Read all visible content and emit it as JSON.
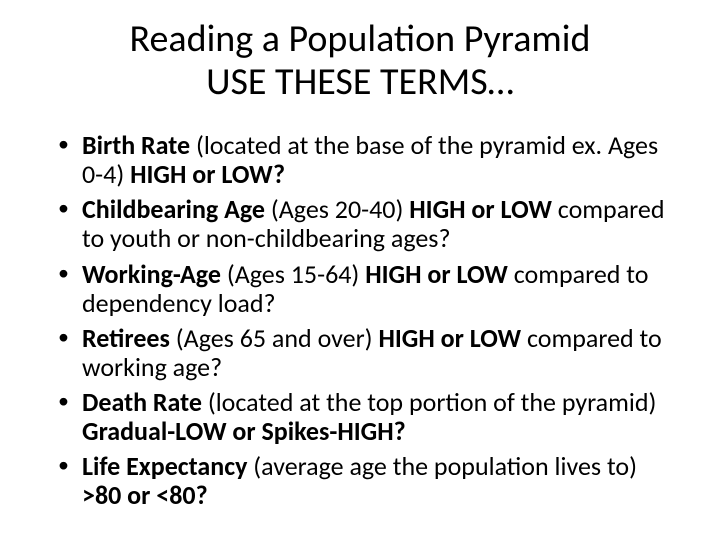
{
  "title_line1": "Reading a Population Pyramid",
  "title_line2": "USE THESE TERMS…",
  "bullets": [
    {
      "term": "Birth Rate",
      "mid": " (located at the base of the pyramid ex. Ages 0-4) ",
      "tail": "HIGH or LOW?"
    },
    {
      "term": "Childbearing Age",
      "mid": " (Ages 20-40) ",
      "tail": "HIGH or LOW",
      "after": " compared to youth or non-childbearing ages?"
    },
    {
      "term": "Working-Age",
      "mid": " (Ages 15-64) ",
      "tail": "HIGH or LOW",
      "after": " compared to dependency load?"
    },
    {
      "term": "Retirees",
      "mid": " (Ages 65 and over) ",
      "tail": "HIGH or LOW",
      "after": " compared to working age?"
    },
    {
      "term": "Death Rate",
      "mid": " (located at the top portion of the pyramid) ",
      "tail": "Gradual-LOW or Spikes-HIGH?"
    },
    {
      "term": "Life Expectancy",
      "mid": " (average age the population lives to) ",
      "tail": ">80 or <80?"
    }
  ]
}
